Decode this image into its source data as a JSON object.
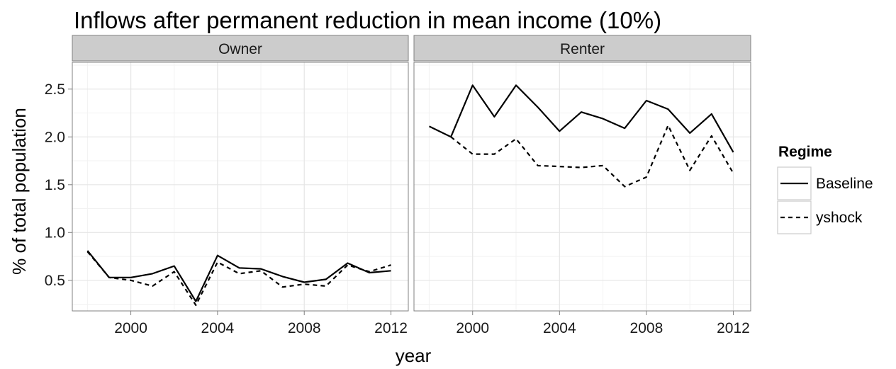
{
  "chart_data": {
    "type": "line",
    "title": "Inflows after permanent reduction in mean income (10%)",
    "xlabel": "year",
    "ylabel": "% of total population",
    "xlim": [
      1997.3,
      2012.8
    ],
    "ylim": [
      0.18,
      2.78
    ],
    "x_ticks": [
      2000,
      2004,
      2008,
      2012
    ],
    "y_ticks": [
      0.5,
      1.0,
      1.5,
      2.0,
      2.5
    ],
    "y_tick_labels": [
      "0.5",
      "1.0",
      "1.5",
      "2.0",
      "2.5"
    ],
    "grid": true,
    "legend": {
      "title": "Regime",
      "placement": "right",
      "entries": [
        {
          "name": "Baseline",
          "dash": "solid"
        },
        {
          "name": "yshock",
          "dash": "dashed"
        }
      ]
    },
    "facets": [
      {
        "label": "Owner",
        "series": [
          {
            "name": "Baseline",
            "x": [
              1998,
              1999,
              2000,
              2001,
              2002,
              2003,
              2004,
              2005,
              2006,
              2007,
              2008,
              2009,
              2010,
              2011,
              2012
            ],
            "values": [
              0.81,
              0.53,
              0.53,
              0.57,
              0.65,
              0.28,
              0.76,
              0.63,
              0.62,
              0.54,
              0.48,
              0.51,
              0.68,
              0.58,
              0.6
            ]
          },
          {
            "name": "yshock",
            "x": [
              1998,
              1999,
              2000,
              2001,
              2002,
              2003,
              2004,
              2005,
              2006,
              2007,
              2008,
              2009,
              2010,
              2011,
              2012
            ],
            "values": [
              0.8,
              0.53,
              0.5,
              0.44,
              0.59,
              0.24,
              0.69,
              0.57,
              0.6,
              0.43,
              0.46,
              0.44,
              0.66,
              0.59,
              0.66
            ]
          }
        ]
      },
      {
        "label": "Renter",
        "series": [
          {
            "name": "Baseline",
            "x": [
              1998,
              1999,
              2000,
              2001,
              2002,
              2003,
              2004,
              2005,
              2006,
              2007,
              2008,
              2009,
              2010,
              2011,
              2012
            ],
            "values": [
              2.11,
              2.0,
              2.54,
              2.21,
              2.54,
              2.31,
              2.06,
              2.26,
              2.19,
              2.09,
              2.38,
              2.29,
              2.04,
              2.24,
              1.84
            ]
          },
          {
            "name": "yshock",
            "x": [
              1999,
              2000,
              2001,
              2002,
              2003,
              2004,
              2005,
              2006,
              2007,
              2008,
              2009,
              2010,
              2011,
              2012
            ],
            "values": [
              2.0,
              1.82,
              1.82,
              1.98,
              1.7,
              1.69,
              1.68,
              1.7,
              1.48,
              1.58,
              2.12,
              1.65,
              2.01,
              1.62
            ]
          }
        ]
      }
    ]
  }
}
